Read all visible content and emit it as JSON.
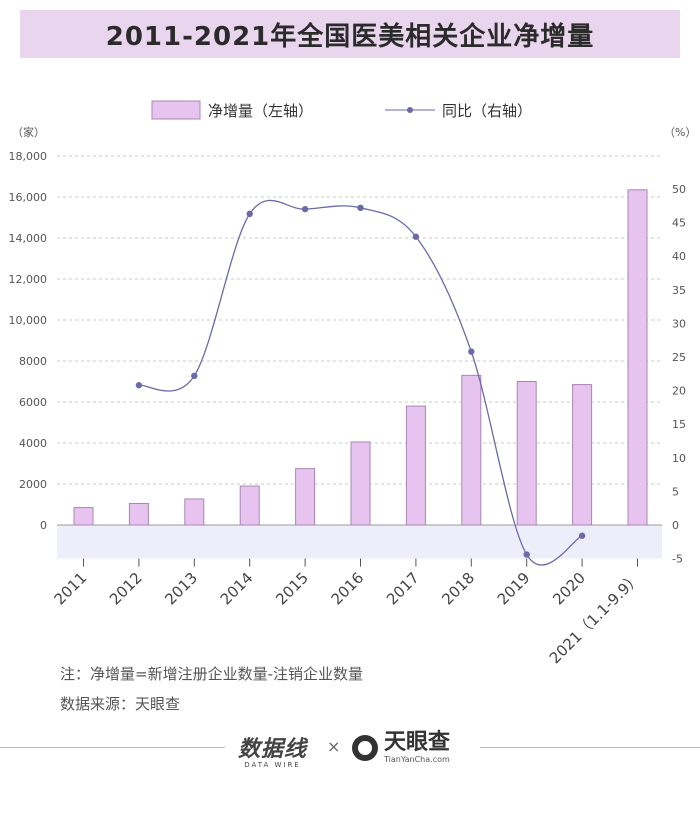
{
  "title": "2011-2021年全国医美相关企业净增量",
  "legend": {
    "bar_label": "净增量（左轴）",
    "line_label": "同比（右轴）"
  },
  "left_unit": "（家）",
  "right_unit": "（%）",
  "colors": {
    "bar_fill": "#e7c4ef",
    "bar_stroke": "#a886b4",
    "line": "#6b6aa8",
    "negative_band": "#eeeefb",
    "title_band": "#e9d6ee"
  },
  "notes": {
    "note": "注：净增量=新增注册企业数量-注销企业数量",
    "source": "数据来源：天眼查"
  },
  "brands": {
    "data_wire": "数据线",
    "data_wire_sub": "DATA WIRE",
    "times": "×",
    "tyc": "天眼查",
    "tyc_sub": "TianYanCha.com"
  },
  "chart_data": {
    "type": "bar",
    "categories": [
      "2011",
      "2012",
      "2013",
      "2014",
      "2015",
      "2016",
      "2017",
      "2018",
      "2019",
      "2020",
      "2021（1.1-9.9）"
    ],
    "series": [
      {
        "name": "净增量（左轴）",
        "type": "bar",
        "axis": "left",
        "values": [
          850,
          1050,
          1270,
          1900,
          2750,
          4050,
          5800,
          7300,
          7000,
          6850,
          16350
        ]
      },
      {
        "name": "同比（右轴）",
        "type": "line",
        "axis": "right",
        "values": [
          null,
          20.8,
          22.2,
          46.3,
          47.0,
          47.2,
          42.9,
          25.8,
          -4.4,
          -1.6,
          null
        ]
      }
    ],
    "left_axis": {
      "ylim": [
        -1500,
        18000
      ],
      "ticks": [
        0,
        2000,
        4000,
        6000,
        8000,
        10000,
        12000,
        14000,
        16000,
        18000
      ],
      "tick_labels": [
        "0",
        "2000",
        "4000",
        "6000",
        "8000",
        "10,000",
        "12,000",
        "14,000",
        "16,000",
        "18,000"
      ]
    },
    "right_axis": {
      "ylim": [
        -5,
        55
      ],
      "ticks": [
        -5,
        0,
        5,
        10,
        15,
        20,
        25,
        30,
        35,
        40,
        45,
        50
      ],
      "tick_labels": [
        "-5",
        "0",
        "5",
        "10",
        "15",
        "20",
        "25",
        "30",
        "35",
        "40",
        "45",
        "50"
      ]
    },
    "grid": true,
    "legend_position": "top-center"
  }
}
